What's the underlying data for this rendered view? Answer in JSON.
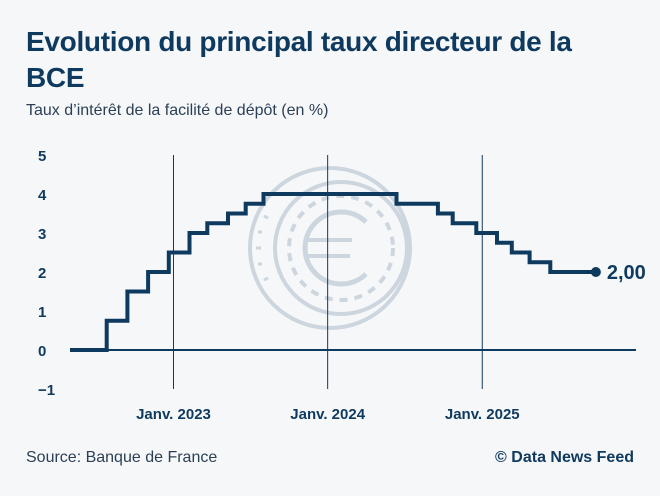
{
  "header": {
    "title": "Evolution du principal taux directeur de la BCE",
    "subtitle": "Taux d’intérêt de la facilité de dépôt (en %)"
  },
  "footer": {
    "source": "Source: Banque de France",
    "credit": "© Data News Feed"
  },
  "colors": {
    "line": "#0f3a5f",
    "coin": "#c9d3dd",
    "background": "#f6f7f9"
  },
  "icons": {
    "watermark": "euro-coin-icon"
  },
  "chart_data": {
    "type": "line",
    "step": true,
    "ylim": [
      -1,
      5
    ],
    "yticks": [
      5,
      4,
      3,
      2,
      1,
      0,
      -1
    ],
    "ytick_labels": [
      "5",
      "4",
      "3",
      "2",
      "1",
      "0",
      "−1"
    ],
    "xlim": [
      "2022-05-01",
      "2025-12-31"
    ],
    "xticks": [
      {
        "date": "2023-01-01",
        "label": "Janv. 2023"
      },
      {
        "date": "2024-01-01",
        "label": "Janv. 2024"
      },
      {
        "date": "2025-01-01",
        "label": "Janv. 2025"
      }
    ],
    "series": [
      {
        "points": [
          {
            "x": "2022-05-01",
            "y": 0.0
          },
          {
            "x": "2022-07-27",
            "y": 0.75
          },
          {
            "x": "2022-09-14",
            "y": 1.5
          },
          {
            "x": "2022-11-02",
            "y": 2.0
          },
          {
            "x": "2022-12-21",
            "y": 2.5
          },
          {
            "x": "2023-02-08",
            "y": 3.0
          },
          {
            "x": "2023-03-22",
            "y": 3.25
          },
          {
            "x": "2023-05-10",
            "y": 3.5
          },
          {
            "x": "2023-06-21",
            "y": 3.75
          },
          {
            "x": "2023-08-02",
            "y": 4.0
          },
          {
            "x": "2024-06-12",
            "y": 3.75
          },
          {
            "x": "2024-09-18",
            "y": 3.5
          },
          {
            "x": "2024-10-23",
            "y": 3.25
          },
          {
            "x": "2024-12-18",
            "y": 3.0
          },
          {
            "x": "2025-02-05",
            "y": 2.75
          },
          {
            "x": "2025-03-12",
            "y": 2.5
          },
          {
            "x": "2025-04-23",
            "y": 2.25
          },
          {
            "x": "2025-06-11",
            "y": 2.0
          },
          {
            "x": "2025-09-27",
            "y": 2.0
          }
        ]
      }
    ],
    "end_label": "2,00",
    "grid": {
      "vertical": true,
      "horizontal": false
    }
  }
}
